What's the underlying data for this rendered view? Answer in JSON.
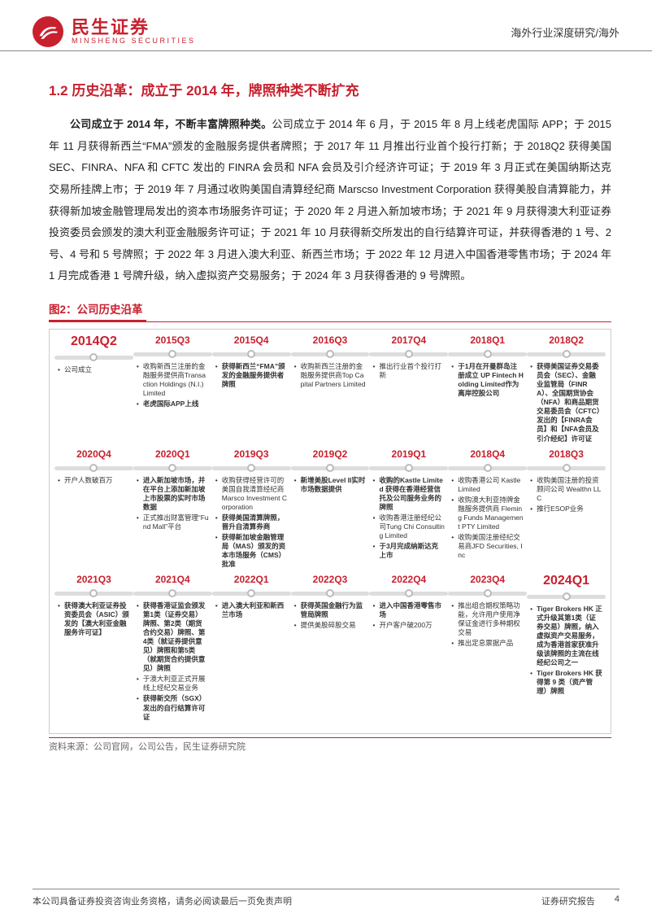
{
  "header": {
    "logo_cn": "民生证券",
    "logo_en": "MINSHENG SECURITIES",
    "category": "海外行业深度研究/海外"
  },
  "section": {
    "title": "1.2 历史沿革：成立于 2014 年，牌照种类不断扩充",
    "lead_bold": "公司成立于 2014 年，不断丰富牌照种类。",
    "para_rest": "公司成立于 2014 年 6 月，于 2015 年 8 月上线老虎国际 APP；于 2015 年 11 月获得新西兰“FMA”颁发的金融服务提供者牌照；于 2017 年 11 月推出行业首个投行打新；于 2018Q2 获得美国 SEC、FINRA、NFA 和 CFTC 发出的 FINRA 会员和 NFA 会员及引介经济许可证；于 2019 年 3 月正式在美国纳斯达克交易所挂牌上市；于 2019 年 7 月通过收购美国自清算经纪商 Marscso Investment Corporation 获得美股自清算能力，并获得新加坡金融管理局发出的资本市场服务许可证；于 2020 年 2 月进入新加坡市场；于 2021 年 9 月获得澳大利亚证券投资委员会颁发的澳大利亚金融服务许可证；于 2021 年 10 月获得新交所发出的自行结算许可证，并获得香港的 1 号、2 号、4 号和 5 号牌照；于 2022 年 3 月进入澳大利亚、新西兰市场；于 2022 年 12 月进入中国香港零售市场；于 2024 年 1 月完成香港 1 号牌升级，纳入虚拟资产交易服务；于 2024 年 3 月获得香港的 9 号牌照。"
  },
  "figure": {
    "title": "图2：公司历史沿革",
    "source": "资料来源：公司官网，公司公告，民生证券研究院"
  },
  "timeline": {
    "accent": "#c8202e",
    "track_color": "#dddddd",
    "rows": [
      {
        "reverse": false,
        "cells": [
          {
            "date": "2014Q2",
            "big": true,
            "items": [
              "公司成立"
            ]
          },
          {
            "date": "2015Q3",
            "items": [
              "收购新西兰注册的金融服务提供商Transaction Holdings (N.I.) Limited",
              "<b>老虎国际APP上线</b>"
            ]
          },
          {
            "date": "2015Q4",
            "items": [
              "<b>获得新西兰“FMA”颁发的金融服务提供者牌照</b>"
            ]
          },
          {
            "date": "2016Q3",
            "items": [
              "收购新西兰注册的金融服务提供商Top Capital Partners Limited"
            ]
          },
          {
            "date": "2017Q4",
            "items": [
              "推出行业首个投行打新"
            ]
          },
          {
            "date": "2018Q1",
            "items": [
              "<b>于1月在开曼群岛注册成立 UP Fintech Holding Limited作为离岸控股公司</b>"
            ]
          },
          {
            "date": "2018Q2",
            "items": [
              "<b>获得美国证券交易委员会（SEC）、金融业监管局（FINRA）、全国期货协会（NFA）和商品期货交易委员会（CFTC）发出的【FINRA会员】和【NFA会员及引介经纪】许可证</b>"
            ]
          }
        ]
      },
      {
        "reverse": true,
        "cells": [
          {
            "date": "2020Q4",
            "items": [
              "开户人数破百万"
            ]
          },
          {
            "date": "2020Q1",
            "items": [
              "<b>进入新加坡市场，并在平台上添加新加坡上市股票的实时市场数据</b>",
              "正式推出财富管理“Fund Mall”平台"
            ]
          },
          {
            "date": "2019Q3",
            "items": [
              "收购获得经营许可的美国自我清算经纪商 Marsco Investment Corporation",
              "<b>获得美国清算牌照，晋升自清算券商</b>",
              "<b>获得新加坡金融管理局（MAS）颁发的资本市场服务（CMS）批准</b>"
            ]
          },
          {
            "date": "2019Q2",
            "items": [
              "<b>新增美股Level II实时市场数据提供</b>"
            ]
          },
          {
            "date": "2019Q1",
            "items": [
              "<b>收购的Kastle Limited 获得在香港经营信托及公司服务业务的牌照</b>",
              "收购香港注册经纪公司Tung Chi Consulting Limited",
              "<b>于3月完成纳斯达克上市</b>"
            ]
          },
          {
            "date": "2018Q4",
            "items": [
              "收购香港公司 Kastle Limited",
              "收购澳大利亚持牌金融服务提供商 Fleming Funds Management PTY Limited",
              "收购美国注册经纪交易商JFD Securities, Inc"
            ]
          },
          {
            "date": "2018Q3",
            "items": [
              "收购美国注册的投资顾问公司 Wealthn LLC",
              "推行ESOP业务"
            ]
          }
        ]
      },
      {
        "reverse": false,
        "cells": [
          {
            "date": "2021Q3",
            "items": [
              "<b>获得澳大利亚证券投资委员会（ASIC）颁发的【澳大利亚金融服务许可证】</b>"
            ]
          },
          {
            "date": "2021Q4",
            "items": [
              "<b>获得香港证监会颁发第1类（证券交易）牌照、第2类（期货合约交易）牌照、第4类（就证券提供意见）牌照和第5类（就期货合约提供意见）牌照</b>",
              "于澳大利亚正式开展线上经纪交易业务",
              "<b>获得新交所（SGX）发出的自行结算许可证</b>"
            ]
          },
          {
            "date": "2022Q1",
            "items": [
              "<b>进入澳大利亚和新西兰市场</b>"
            ]
          },
          {
            "date": "2022Q3",
            "items": [
              "<b>获得英国金融行为监管局牌照</b>",
              "提供美股碎股交易"
            ]
          },
          {
            "date": "2022Q4",
            "items": [
              "<b>进入中国香港零售市场</b>",
              "开户客户破200万"
            ]
          },
          {
            "date": "2023Q4",
            "items": [
              "推出组合期权策略功能，允许用户使用净保证金进行多种期权交易",
              "推出定息票据产品"
            ]
          },
          {
            "date": "2024Q1",
            "big": true,
            "items": [
              "<b>Tiger Brokers HK 正式升级其第1类（证券交易）牌照，纳入虚拟资产交易服务，成为香港首家获准升级该牌照的主流在线经纪公司之一</b>",
              "<b>Tiger Brokers HK 获得第 9 类（资产管理）牌照</b>"
            ]
          }
        ]
      }
    ]
  },
  "footer": {
    "left": "本公司具备证券投资咨询业务资格，请务必阅读最后一页免责声明",
    "right_label": "证券研究报告",
    "page": "4"
  }
}
